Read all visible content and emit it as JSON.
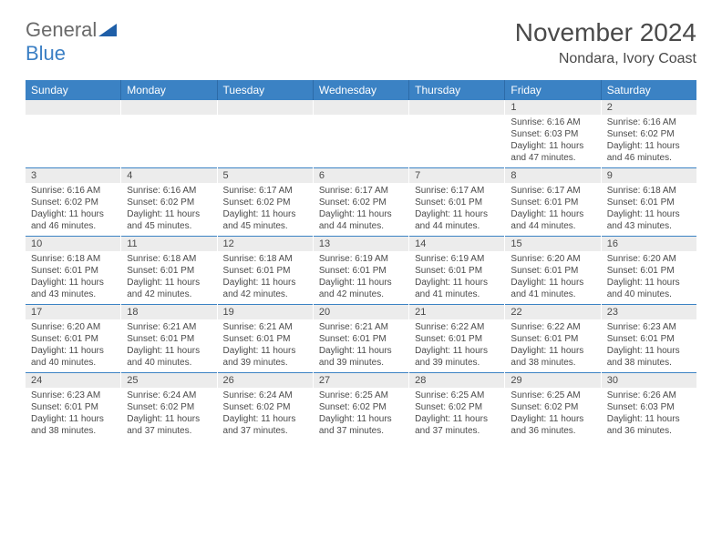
{
  "logo": {
    "text1": "General",
    "text2": "Blue",
    "color_general": "#6a6a6a",
    "color_blue": "#3b7fc4",
    "icon_color": "#1f5fa8"
  },
  "title": "November 2024",
  "location": "Nondara, Ivory Coast",
  "colors": {
    "header_bg": "#3b82c4",
    "header_text": "#ffffff",
    "date_bg": "#ececec",
    "text": "#4a4a4a",
    "divider": "#3b82c4"
  },
  "day_headers": [
    "Sunday",
    "Monday",
    "Tuesday",
    "Wednesday",
    "Thursday",
    "Friday",
    "Saturday"
  ],
  "weeks": [
    {
      "dates": [
        "",
        "",
        "",
        "",
        "",
        "1",
        "2"
      ],
      "details": [
        {
          "sunrise": "",
          "sunset": "",
          "daylight1": "",
          "daylight2": ""
        },
        {
          "sunrise": "",
          "sunset": "",
          "daylight1": "",
          "daylight2": ""
        },
        {
          "sunrise": "",
          "sunset": "",
          "daylight1": "",
          "daylight2": ""
        },
        {
          "sunrise": "",
          "sunset": "",
          "daylight1": "",
          "daylight2": ""
        },
        {
          "sunrise": "",
          "sunset": "",
          "daylight1": "",
          "daylight2": ""
        },
        {
          "sunrise": "Sunrise: 6:16 AM",
          "sunset": "Sunset: 6:03 PM",
          "daylight1": "Daylight: 11 hours",
          "daylight2": "and 47 minutes."
        },
        {
          "sunrise": "Sunrise: 6:16 AM",
          "sunset": "Sunset: 6:02 PM",
          "daylight1": "Daylight: 11 hours",
          "daylight2": "and 46 minutes."
        }
      ]
    },
    {
      "dates": [
        "3",
        "4",
        "5",
        "6",
        "7",
        "8",
        "9"
      ],
      "details": [
        {
          "sunrise": "Sunrise: 6:16 AM",
          "sunset": "Sunset: 6:02 PM",
          "daylight1": "Daylight: 11 hours",
          "daylight2": "and 46 minutes."
        },
        {
          "sunrise": "Sunrise: 6:16 AM",
          "sunset": "Sunset: 6:02 PM",
          "daylight1": "Daylight: 11 hours",
          "daylight2": "and 45 minutes."
        },
        {
          "sunrise": "Sunrise: 6:17 AM",
          "sunset": "Sunset: 6:02 PM",
          "daylight1": "Daylight: 11 hours",
          "daylight2": "and 45 minutes."
        },
        {
          "sunrise": "Sunrise: 6:17 AM",
          "sunset": "Sunset: 6:02 PM",
          "daylight1": "Daylight: 11 hours",
          "daylight2": "and 44 minutes."
        },
        {
          "sunrise": "Sunrise: 6:17 AM",
          "sunset": "Sunset: 6:01 PM",
          "daylight1": "Daylight: 11 hours",
          "daylight2": "and 44 minutes."
        },
        {
          "sunrise": "Sunrise: 6:17 AM",
          "sunset": "Sunset: 6:01 PM",
          "daylight1": "Daylight: 11 hours",
          "daylight2": "and 44 minutes."
        },
        {
          "sunrise": "Sunrise: 6:18 AM",
          "sunset": "Sunset: 6:01 PM",
          "daylight1": "Daylight: 11 hours",
          "daylight2": "and 43 minutes."
        }
      ]
    },
    {
      "dates": [
        "10",
        "11",
        "12",
        "13",
        "14",
        "15",
        "16"
      ],
      "details": [
        {
          "sunrise": "Sunrise: 6:18 AM",
          "sunset": "Sunset: 6:01 PM",
          "daylight1": "Daylight: 11 hours",
          "daylight2": "and 43 minutes."
        },
        {
          "sunrise": "Sunrise: 6:18 AM",
          "sunset": "Sunset: 6:01 PM",
          "daylight1": "Daylight: 11 hours",
          "daylight2": "and 42 minutes."
        },
        {
          "sunrise": "Sunrise: 6:18 AM",
          "sunset": "Sunset: 6:01 PM",
          "daylight1": "Daylight: 11 hours",
          "daylight2": "and 42 minutes."
        },
        {
          "sunrise": "Sunrise: 6:19 AM",
          "sunset": "Sunset: 6:01 PM",
          "daylight1": "Daylight: 11 hours",
          "daylight2": "and 42 minutes."
        },
        {
          "sunrise": "Sunrise: 6:19 AM",
          "sunset": "Sunset: 6:01 PM",
          "daylight1": "Daylight: 11 hours",
          "daylight2": "and 41 minutes."
        },
        {
          "sunrise": "Sunrise: 6:20 AM",
          "sunset": "Sunset: 6:01 PM",
          "daylight1": "Daylight: 11 hours",
          "daylight2": "and 41 minutes."
        },
        {
          "sunrise": "Sunrise: 6:20 AM",
          "sunset": "Sunset: 6:01 PM",
          "daylight1": "Daylight: 11 hours",
          "daylight2": "and 40 minutes."
        }
      ]
    },
    {
      "dates": [
        "17",
        "18",
        "19",
        "20",
        "21",
        "22",
        "23"
      ],
      "details": [
        {
          "sunrise": "Sunrise: 6:20 AM",
          "sunset": "Sunset: 6:01 PM",
          "daylight1": "Daylight: 11 hours",
          "daylight2": "and 40 minutes."
        },
        {
          "sunrise": "Sunrise: 6:21 AM",
          "sunset": "Sunset: 6:01 PM",
          "daylight1": "Daylight: 11 hours",
          "daylight2": "and 40 minutes."
        },
        {
          "sunrise": "Sunrise: 6:21 AM",
          "sunset": "Sunset: 6:01 PM",
          "daylight1": "Daylight: 11 hours",
          "daylight2": "and 39 minutes."
        },
        {
          "sunrise": "Sunrise: 6:21 AM",
          "sunset": "Sunset: 6:01 PM",
          "daylight1": "Daylight: 11 hours",
          "daylight2": "and 39 minutes."
        },
        {
          "sunrise": "Sunrise: 6:22 AM",
          "sunset": "Sunset: 6:01 PM",
          "daylight1": "Daylight: 11 hours",
          "daylight2": "and 39 minutes."
        },
        {
          "sunrise": "Sunrise: 6:22 AM",
          "sunset": "Sunset: 6:01 PM",
          "daylight1": "Daylight: 11 hours",
          "daylight2": "and 38 minutes."
        },
        {
          "sunrise": "Sunrise: 6:23 AM",
          "sunset": "Sunset: 6:01 PM",
          "daylight1": "Daylight: 11 hours",
          "daylight2": "and 38 minutes."
        }
      ]
    },
    {
      "dates": [
        "24",
        "25",
        "26",
        "27",
        "28",
        "29",
        "30"
      ],
      "details": [
        {
          "sunrise": "Sunrise: 6:23 AM",
          "sunset": "Sunset: 6:01 PM",
          "daylight1": "Daylight: 11 hours",
          "daylight2": "and 38 minutes."
        },
        {
          "sunrise": "Sunrise: 6:24 AM",
          "sunset": "Sunset: 6:02 PM",
          "daylight1": "Daylight: 11 hours",
          "daylight2": "and 37 minutes."
        },
        {
          "sunrise": "Sunrise: 6:24 AM",
          "sunset": "Sunset: 6:02 PM",
          "daylight1": "Daylight: 11 hours",
          "daylight2": "and 37 minutes."
        },
        {
          "sunrise": "Sunrise: 6:25 AM",
          "sunset": "Sunset: 6:02 PM",
          "daylight1": "Daylight: 11 hours",
          "daylight2": "and 37 minutes."
        },
        {
          "sunrise": "Sunrise: 6:25 AM",
          "sunset": "Sunset: 6:02 PM",
          "daylight1": "Daylight: 11 hours",
          "daylight2": "and 37 minutes."
        },
        {
          "sunrise": "Sunrise: 6:25 AM",
          "sunset": "Sunset: 6:02 PM",
          "daylight1": "Daylight: 11 hours",
          "daylight2": "and 36 minutes."
        },
        {
          "sunrise": "Sunrise: 6:26 AM",
          "sunset": "Sunset: 6:03 PM",
          "daylight1": "Daylight: 11 hours",
          "daylight2": "and 36 minutes."
        }
      ]
    }
  ]
}
